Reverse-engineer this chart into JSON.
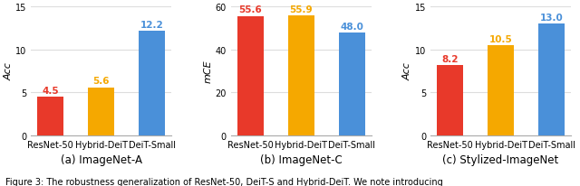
{
  "subplots": [
    {
      "subtitle": "(a) ImageNet-A",
      "ylabel": "Acc",
      "ylim": [
        0,
        15
      ],
      "yticks": [
        0,
        5,
        10,
        15
      ],
      "categories": [
        "ResNet-50",
        "Hybrid-DeiT",
        "DeiT-Small"
      ],
      "values": [
        4.5,
        5.6,
        12.2
      ],
      "colors": [
        "#e8392a",
        "#f5a800",
        "#4a90d9"
      ],
      "value_colors": [
        "#e8392a",
        "#f5a800",
        "#4a90d9"
      ]
    },
    {
      "subtitle": "(b) ImageNet-C",
      "ylabel": "mCE",
      "ylim": [
        0,
        60
      ],
      "yticks": [
        0,
        20,
        40,
        60
      ],
      "categories": [
        "ResNet-50",
        "Hybrid-DeiT",
        "DeiT-Small"
      ],
      "values": [
        55.6,
        55.9,
        48.0
      ],
      "colors": [
        "#e8392a",
        "#f5a800",
        "#4a90d9"
      ],
      "value_colors": [
        "#e8392a",
        "#f5a800",
        "#4a90d9"
      ]
    },
    {
      "subtitle": "(c) Stylized-ImageNet",
      "ylabel": "Acc",
      "ylim": [
        0,
        15
      ],
      "yticks": [
        0,
        5,
        10,
        15
      ],
      "categories": [
        "ResNet-50",
        "Hybrid-DeiT",
        "DeiT-Small"
      ],
      "values": [
        8.2,
        10.5,
        13.0
      ],
      "colors": [
        "#e8392a",
        "#f5a800",
        "#4a90d9"
      ],
      "value_colors": [
        "#e8392a",
        "#f5a800",
        "#4a90d9"
      ]
    }
  ],
  "figure_caption": "Figure 3: The robustness generalization of ResNet-50, DeiT-S and Hybrid-DeiT. We note introducing",
  "bar_width": 0.52,
  "subtitle_fontsize": 8.5,
  "label_fontsize": 8,
  "tick_fontsize": 7,
  "value_fontsize": 7.5,
  "caption_fontsize": 7,
  "grid_color": "#dddddd",
  "background_color": "#ffffff"
}
